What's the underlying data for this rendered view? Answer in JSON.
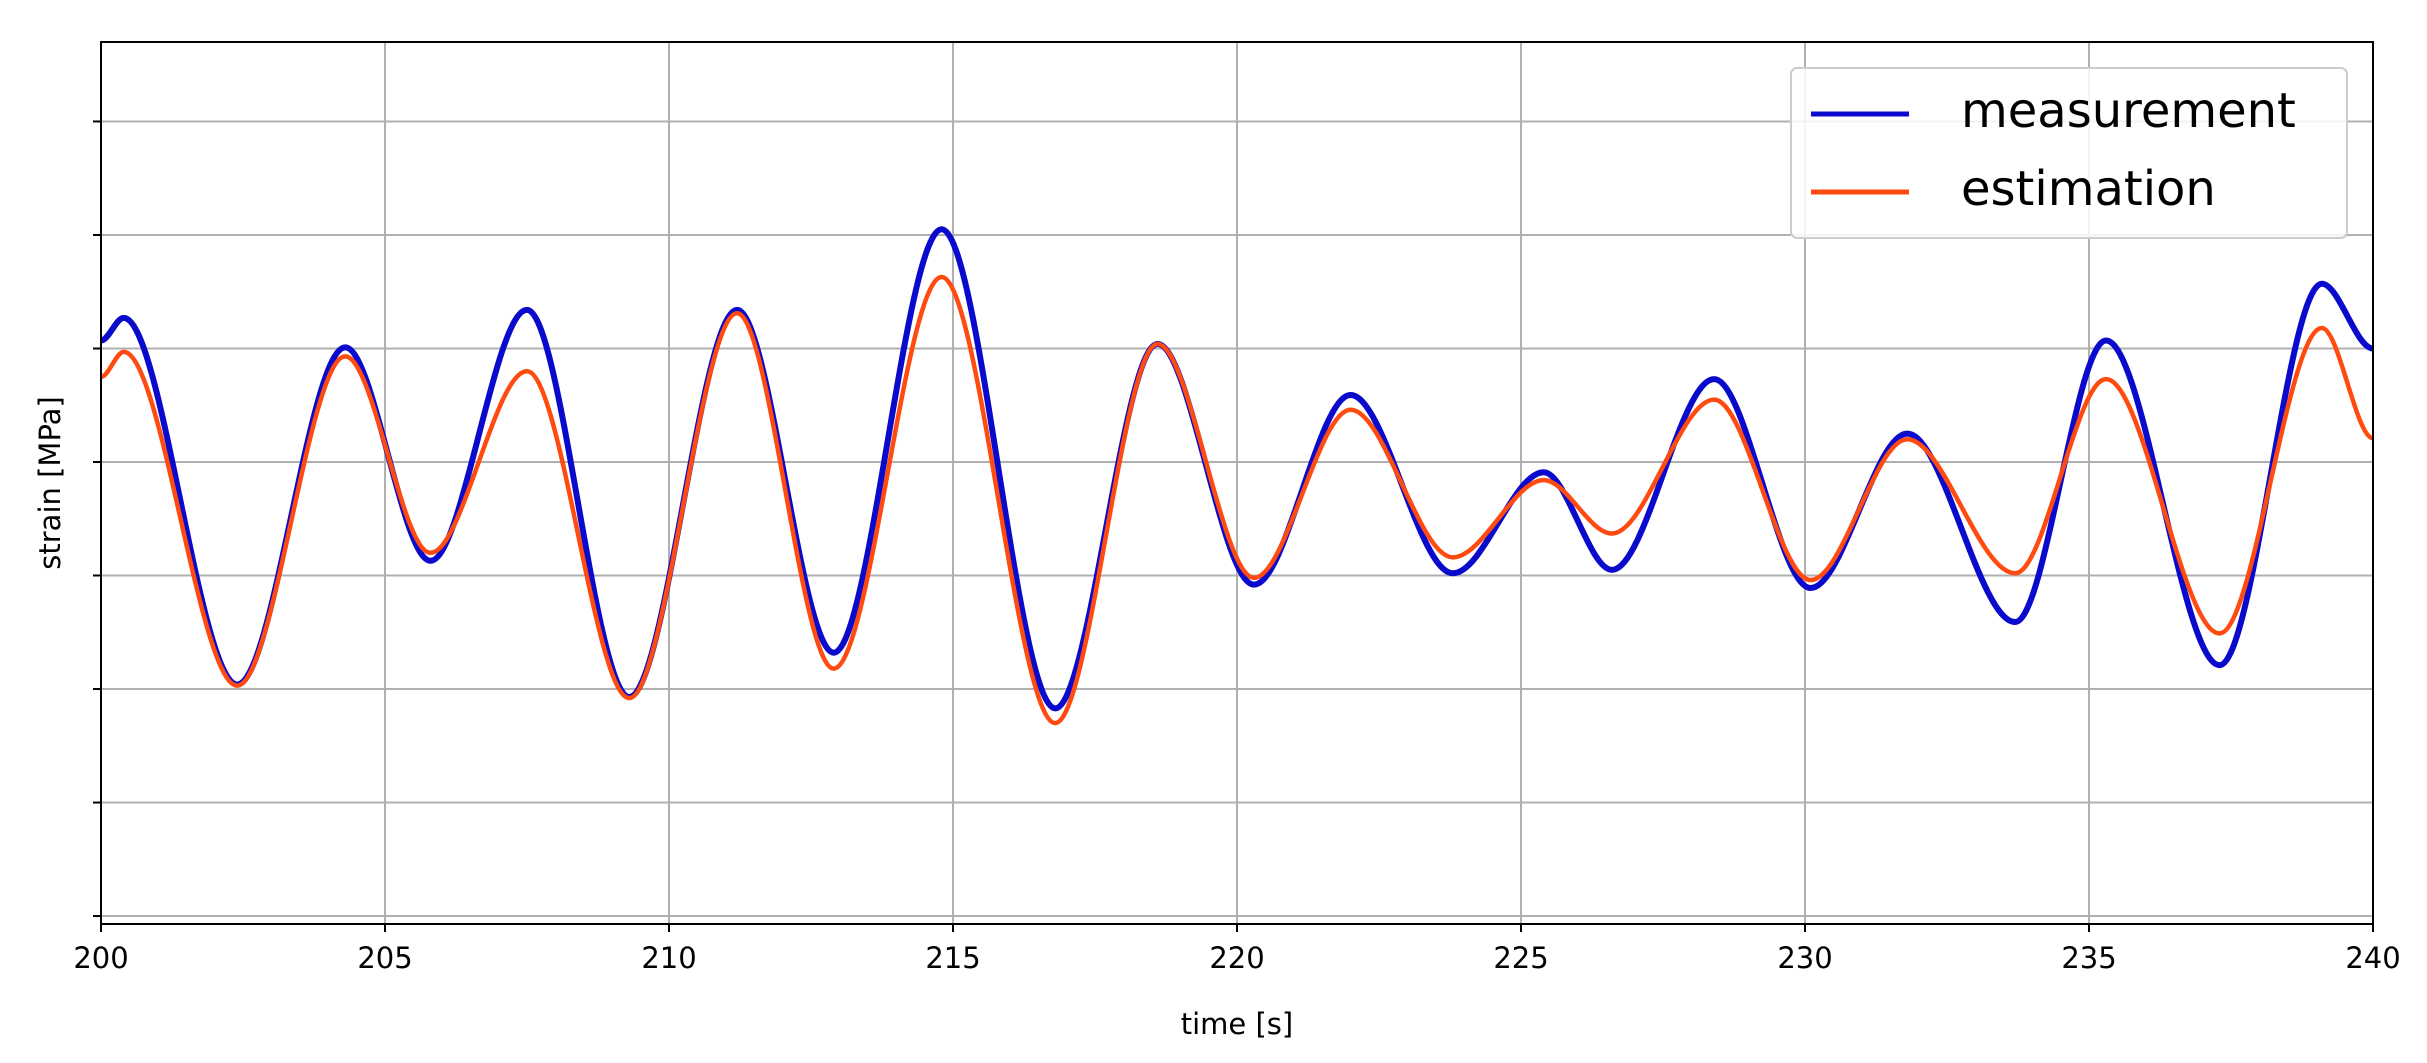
{
  "chart_data": {
    "type": "line",
    "xlabel": "time [s]",
    "ylabel": "strain [MPa]",
    "x": [
      200,
      200.4,
      202.4,
      204.3,
      205.8,
      207.5,
      209.3,
      211.2,
      212.9,
      214.8,
      216.8,
      218.6,
      220.3,
      222,
      223.8,
      225.4,
      226.6,
      228.4,
      230.1,
      231.8,
      233.7,
      235.3,
      237.3,
      239.1,
      240
    ],
    "series": [
      {
        "name": "measurement",
        "color": "#0a0acc",
        "values": [
          5.07,
          5.27,
          2.04,
          5.01,
          3.13,
          5.34,
          1.93,
          5.34,
          2.32,
          6.05,
          1.83,
          5.04,
          2.92,
          4.59,
          3.02,
          3.91,
          3.05,
          4.73,
          2.89,
          4.25,
          2.59,
          5.07,
          2.21,
          5.57,
          5.0
        ]
      },
      {
        "name": "estimation",
        "color": "#ff4a10",
        "values": [
          4.75,
          4.97,
          2.03,
          4.93,
          3.2,
          4.8,
          1.92,
          5.31,
          2.18,
          5.63,
          1.7,
          5.04,
          2.98,
          4.46,
          3.16,
          3.84,
          3.37,
          4.55,
          2.96,
          4.2,
          3.02,
          4.73,
          2.49,
          5.18,
          4.21
        ]
      }
    ],
    "xlim": [
      200,
      240
    ],
    "xticks": [
      200,
      205,
      210,
      215,
      220,
      225,
      230,
      235,
      240
    ],
    "ylim": [
      -0.07,
      7.7
    ],
    "yticks": [
      0,
      1,
      2,
      3,
      4,
      5,
      6,
      7
    ],
    "ytick_labels": false,
    "grid": true,
    "legend": "upper right"
  }
}
